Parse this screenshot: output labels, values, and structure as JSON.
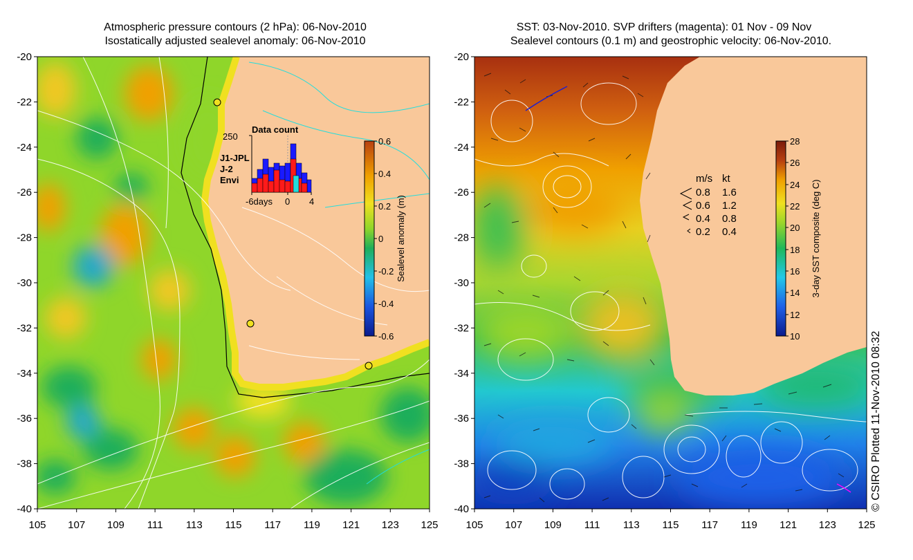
{
  "left_panel": {
    "title_line1": "Atmospheric pressure contours (2 hPa): 06-Nov-2010",
    "title_line2": "Isostatically adjusted sealevel anomaly: 06-Nov-2010",
    "colorbar": {
      "label": "Sealevel anomaly (m)",
      "ticks": [
        "0.6",
        "0.4",
        "0.2",
        "0",
        "-0.2",
        "-0.4",
        "-0.6"
      ]
    },
    "inset": {
      "title": "Data count",
      "ymax_label": "250",
      "x_labels": [
        "-6days",
        "0",
        "4"
      ],
      "legend": [
        {
          "label": "J1-JPL",
          "color": "#1a1aff"
        },
        {
          "label": "J-2",
          "color": "#ff1a1a"
        },
        {
          "label": "Envi",
          "color": "#22dddd"
        }
      ]
    }
  },
  "right_panel": {
    "title_line1": "SST: 03-Nov-2010. SVP drifters (magenta): 01 Nov - 09 Nov",
    "title_line2": "Sealevel contours (0.1 m) and geostrophic velocity: 06-Nov-2010.",
    "colorbar": {
      "label": "3-day SST composite (deg C)",
      "ticks": [
        "28",
        "26",
        "24",
        "22",
        "20",
        "18",
        "16",
        "14",
        "12",
        "10"
      ]
    },
    "speed_legend": {
      "header_ms": "m/s",
      "header_kt": "kt",
      "rows": [
        {
          "ms": "0.8",
          "kt": "1.6"
        },
        {
          "ms": "0.6",
          "kt": "1.2"
        },
        {
          "ms": "0.4",
          "kt": "0.8"
        },
        {
          "ms": "0.2",
          "kt": "0.4"
        }
      ]
    }
  },
  "axes": {
    "lat_labels": [
      "-20",
      "-22",
      "-24",
      "-26",
      "-28",
      "-30",
      "-32",
      "-34",
      "-36",
      "-38",
      "-40"
    ],
    "lon_labels": [
      "105",
      "107",
      "109",
      "111",
      "113",
      "115",
      "117",
      "119",
      "121",
      "123",
      "125"
    ]
  },
  "credit": "© CSIRO Plotted 11-Nov-2010 08:32",
  "colors": {
    "land": "#f9c89a",
    "sla_ramp": [
      "#0a1a8c",
      "#1a55e0",
      "#22c0e8",
      "#1fae5a",
      "#8fd62a",
      "#f0e020",
      "#f0a000",
      "#b84010"
    ],
    "sst_ramp": [
      "#0a1a8c",
      "#1f60e8",
      "#22c8e8",
      "#1fb85a",
      "#9bd62a",
      "#f0e020",
      "#f0a000",
      "#b84010",
      "#7a1a0a"
    ]
  }
}
